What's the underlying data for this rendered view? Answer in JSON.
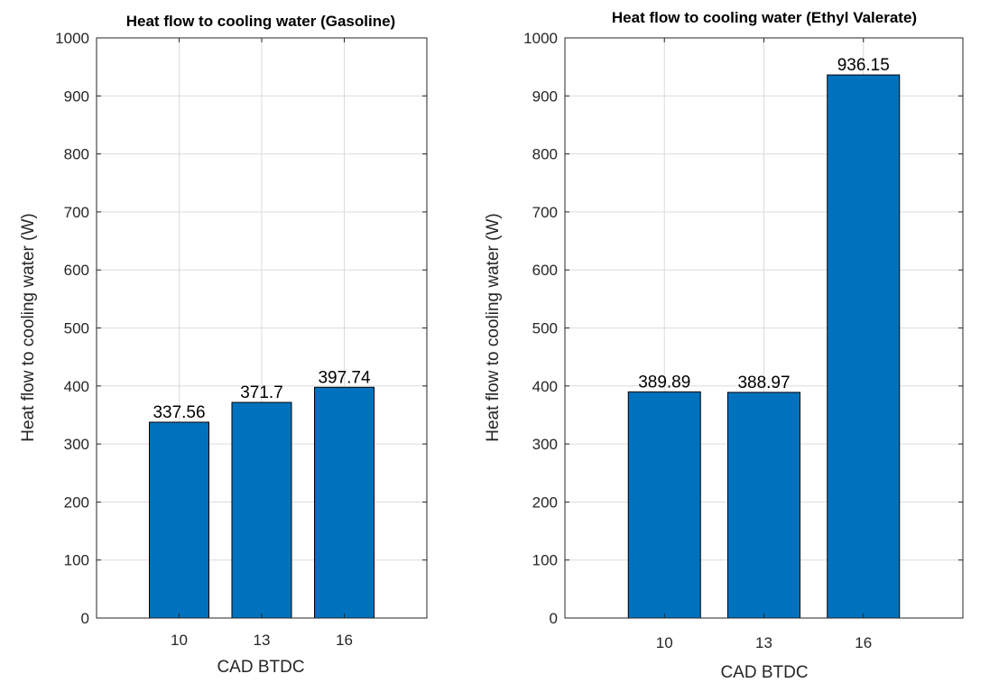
{
  "colors": {
    "bar": "#0072BD",
    "grid": "#dcdcdc",
    "axis": "#262626"
  },
  "chart_data": [
    {
      "type": "bar",
      "title": "Heat flow to cooling water (Gasoline)",
      "xlabel": "CAD BTDC",
      "ylabel": "Heat flow to cooling water (W)",
      "categories": [
        "10",
        "13",
        "16"
      ],
      "values": [
        337.56,
        371.7,
        397.74
      ],
      "value_labels": [
        "337.56",
        "371.7",
        "397.74"
      ],
      "ylim": [
        0,
        1000
      ],
      "yticks": [
        "0",
        "100",
        "200",
        "300",
        "400",
        "500",
        "600",
        "700",
        "800",
        "900",
        "1000"
      ],
      "grid": true,
      "legend": "none"
    },
    {
      "type": "bar",
      "title": "Heat flow to cooling water (Ethyl Valerate)",
      "xlabel": "CAD BTDC",
      "ylabel": "Heat flow to cooling water (W)",
      "categories": [
        "10",
        "13",
        "16"
      ],
      "values": [
        389.89,
        388.97,
        936.15
      ],
      "value_labels": [
        "389.89",
        "388.97",
        "936.15"
      ],
      "ylim": [
        0,
        1000
      ],
      "yticks": [
        "0",
        "100",
        "200",
        "300",
        "400",
        "500",
        "600",
        "700",
        "800",
        "900",
        "1000"
      ],
      "grid": true,
      "legend": "none"
    }
  ]
}
